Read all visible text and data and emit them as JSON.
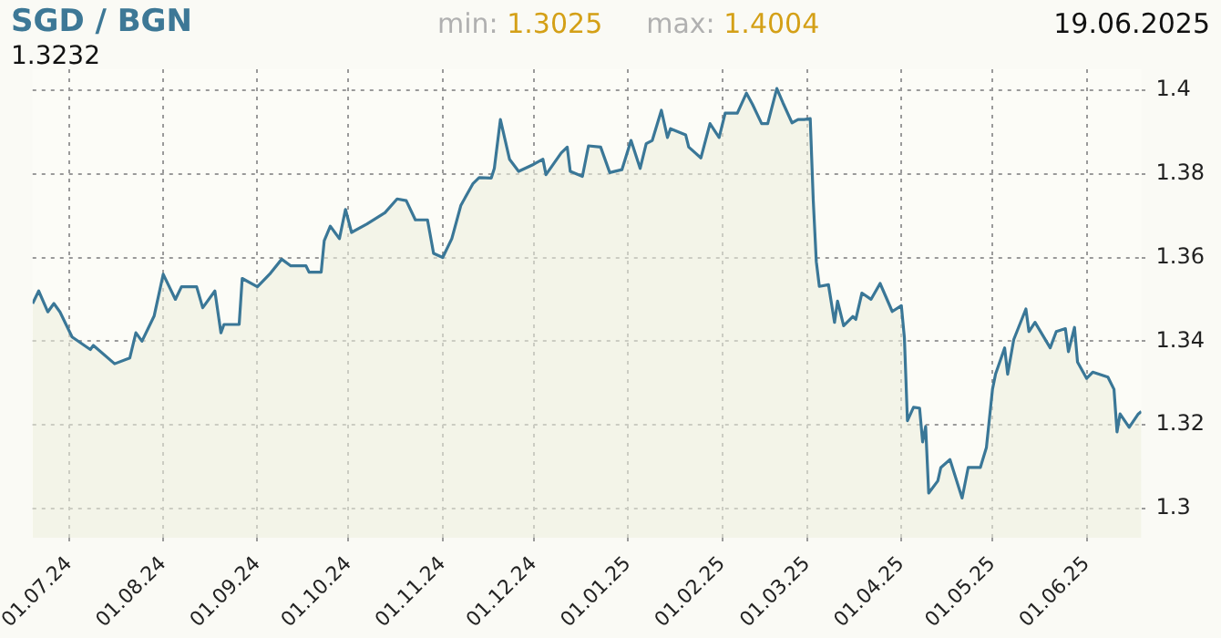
{
  "chart_data": {
    "type": "area",
    "title": "SGD / BGN",
    "annotations": [
      "min: 1.3025",
      "max: 1.4004",
      "19.06.2025",
      "1.3232"
    ],
    "x": [
      "2024-06-19",
      "2024-06-21",
      "2024-06-24",
      "2024-06-26",
      "2024-06-28",
      "2024-07-02",
      "2024-07-08",
      "2024-07-09",
      "2024-07-16",
      "2024-07-21",
      "2024-07-23",
      "2024-07-25",
      "2024-07-29",
      "2024-08-01",
      "2024-08-05",
      "2024-08-07",
      "2024-08-12",
      "2024-08-14",
      "2024-08-18",
      "2024-08-20",
      "2024-08-21",
      "2024-08-26",
      "2024-08-27",
      "2024-09-01",
      "2024-09-05",
      "2024-09-09",
      "2024-09-12",
      "2024-09-17",
      "2024-09-18",
      "2024-09-22",
      "2024-09-23",
      "2024-09-25",
      "2024-09-28",
      "2024-09-30",
      "2024-10-02",
      "2024-10-07",
      "2024-10-13",
      "2024-10-17",
      "2024-10-20",
      "2024-10-23",
      "2024-10-27",
      "2024-10-29",
      "2024-11-01",
      "2024-11-04",
      "2024-11-07",
      "2024-11-11",
      "2024-11-13",
      "2024-11-17",
      "2024-11-18",
      "2024-11-20",
      "2024-11-23",
      "2024-11-26",
      "2024-12-01",
      "2024-12-04",
      "2024-12-05",
      "2024-12-10",
      "2024-12-12",
      "2024-12-13",
      "2024-12-17",
      "2024-12-19",
      "2024-12-23",
      "2024-12-26",
      "2024-12-30",
      "2025-01-02",
      "2025-01-05",
      "2025-01-07",
      "2025-01-09",
      "2025-01-12",
      "2025-01-14",
      "2025-01-15",
      "2025-01-20",
      "2025-01-21",
      "2025-01-25",
      "2025-01-28",
      "2025-01-31",
      "2025-02-02",
      "2025-02-06",
      "2025-02-09",
      "2025-02-11",
      "2025-02-14",
      "2025-02-16",
      "2025-02-19",
      "2025-02-21",
      "2025-02-24",
      "2025-02-26",
      "2025-02-28",
      "2025-03-02",
      "2025-03-03",
      "2025-03-04",
      "2025-03-05",
      "2025-03-08",
      "2025-03-10",
      "2025-03-11",
      "2025-03-13",
      "2025-03-16",
      "2025-03-17",
      "2025-03-19",
      "2025-03-22",
      "2025-03-25",
      "2025-03-29",
      "2025-04-01",
      "2025-04-02",
      "2025-04-03",
      "2025-04-05",
      "2025-04-07",
      "2025-04-08",
      "2025-04-09",
      "2025-04-10",
      "2025-04-13",
      "2025-04-14",
      "2025-04-17",
      "2025-04-21",
      "2025-04-23",
      "2025-04-27",
      "2025-04-29",
      "2025-05-01",
      "2025-05-02",
      "2025-05-05",
      "2025-05-06",
      "2025-05-08",
      "2025-05-12",
      "2025-05-13",
      "2025-05-15",
      "2025-05-20",
      "2025-05-22",
      "2025-05-25",
      "2025-05-26",
      "2025-05-28",
      "2025-05-29",
      "2025-06-01",
      "2025-06-03",
      "2025-06-08",
      "2025-06-10",
      "2025-06-11",
      "2025-06-12",
      "2025-06-15",
      "2025-06-18",
      "2025-06-19"
    ],
    "series": [
      {
        "color": "#3a7797",
        "values": [
          1.349,
          1.352,
          1.347,
          1.349,
          1.347,
          1.341,
          1.338,
          1.339,
          1.3346,
          1.336,
          1.342,
          1.34,
          1.346,
          1.356,
          1.35,
          1.353,
          1.353,
          1.348,
          1.352,
          1.342,
          1.344,
          1.344,
          1.355,
          1.353,
          1.356,
          1.3596,
          1.358,
          1.358,
          1.3565,
          1.3565,
          1.364,
          1.3675,
          1.3645,
          1.3715,
          1.366,
          1.368,
          1.3707,
          1.374,
          1.3736,
          1.369,
          1.369,
          1.361,
          1.36,
          1.3645,
          1.3725,
          1.3777,
          1.3791,
          1.379,
          1.3813,
          1.393,
          1.3835,
          1.3806,
          1.3823,
          1.3835,
          1.3798,
          1.385,
          1.3864,
          1.3806,
          1.3794,
          1.3867,
          1.3864,
          1.3803,
          1.381,
          1.388,
          1.3813,
          1.3872,
          1.388,
          1.3952,
          1.3887,
          1.3908,
          1.3893,
          1.3864,
          1.3838,
          1.392,
          1.3887,
          1.3945,
          1.3945,
          1.3993,
          1.3966,
          1.392,
          1.392,
          1.4004,
          1.397,
          1.3922,
          1.393,
          1.393,
          1.3932,
          1.3736,
          1.359,
          1.3531,
          1.3535,
          1.3445,
          1.3496,
          1.3437,
          1.3459,
          1.3452,
          1.3515,
          1.35,
          1.3538,
          1.3471,
          1.3485,
          1.3408,
          1.321,
          1.3242,
          1.324,
          1.3159,
          1.3196,
          1.3037,
          1.3066,
          1.3098,
          1.3117,
          1.3025,
          1.3098,
          1.3098,
          1.3146,
          1.3285,
          1.3321,
          1.3384,
          1.3321,
          1.3404,
          1.3477,
          1.3423,
          1.3445,
          1.3384,
          1.3423,
          1.343,
          1.3375,
          1.3433,
          1.335,
          1.3311,
          1.3326,
          1.3314,
          1.3285,
          1.3183,
          1.3226,
          1.3194,
          1.3226,
          1.3232
        ]
      }
    ],
    "xlim": [
      "2024-06-19",
      "2025-06-19"
    ],
    "xticks": [
      {
        "value": "2024-07-01",
        "label": "01.07.24"
      },
      {
        "value": "2024-08-01",
        "label": "01.08.24"
      },
      {
        "value": "2024-09-01",
        "label": "01.09.24"
      },
      {
        "value": "2024-10-01",
        "label": "01.10.24"
      },
      {
        "value": "2024-11-01",
        "label": "01.11.24"
      },
      {
        "value": "2024-12-01",
        "label": "01.12.24"
      },
      {
        "value": "2025-01-01",
        "label": "01.01.25"
      },
      {
        "value": "2025-02-01",
        "label": "01.02.25"
      },
      {
        "value": "2025-03-01",
        "label": "01.03.25"
      },
      {
        "value": "2025-04-01",
        "label": "01.04.25"
      },
      {
        "value": "2025-05-01",
        "label": "01.05.25"
      },
      {
        "value": "2025-06-01",
        "label": "01.06.25"
      }
    ],
    "ylim": [
      1.293,
      1.405
    ],
    "yticks": [
      1.3,
      1.32,
      1.34,
      1.36,
      1.38,
      1.4
    ],
    "grid": true,
    "legend": false,
    "marker": "none",
    "line_style": "solid"
  }
}
